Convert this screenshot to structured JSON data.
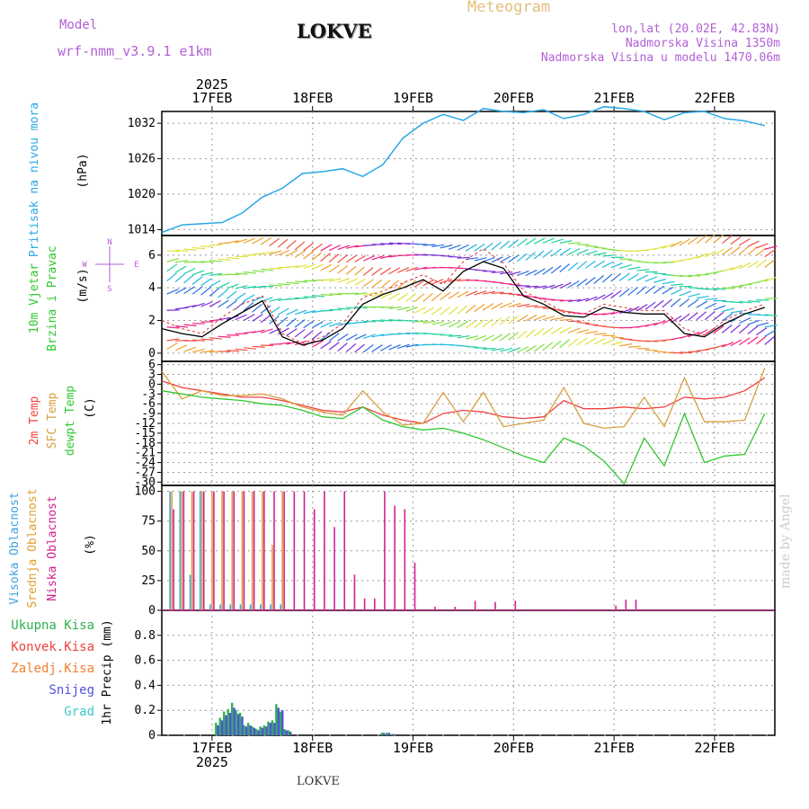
{
  "header": {
    "model_label": "Model",
    "model_name": "wrf-nmm_v3.9.1 e1km",
    "station": "LOKVE",
    "title": "Meteogram",
    "lonlat": "lon,lat (20.02E, 42.83N)",
    "elevation": "Nadmorska Visina 1350m",
    "model_elevation": "Nadmorska Visina u modelu 1470.06m"
  },
  "footer_station": "LOKVE",
  "watermark": "made by Angel",
  "colors": {
    "pressure": "#2aa8e6",
    "wind_speed": "#000000",
    "temp2m": "#f04040",
    "sfc_temp": "#d8a040",
    "dewpt": "#30c830",
    "high_cloud": "#40a0e0",
    "mid_cloud": "#e0a030",
    "low_cloud": "#d02090",
    "total_precip": "#30b050",
    "conv_precip": "#f04040",
    "frz_precip": "#f08030",
    "snow": "#5050e0",
    "hail": "#40c8c8",
    "title_purple": "#b25fd6"
  },
  "chart_data": [
    {
      "type": "line",
      "title": "",
      "ylabel_lines": [
        "Pritisak na nivou mora"
      ],
      "unit": "(hPa)",
      "x_date_labels": [
        "17FEB",
        "18FEB",
        "19FEB",
        "20FEB",
        "21FEB",
        "22FEB"
      ],
      "year_label": "2025",
      "x_range_days": [
        16.5,
        22.6
      ],
      "ylim": [
        1013,
        1034
      ],
      "yticks": [
        1014,
        1020,
        1026,
        1032
      ],
      "grid": true,
      "x": [
        16.5,
        16.7,
        16.9,
        17.1,
        17.3,
        17.5,
        17.7,
        17.9,
        18.1,
        18.3,
        18.5,
        18.7,
        18.9,
        19.1,
        19.3,
        19.5,
        19.7,
        19.9,
        20.1,
        20.3,
        20.5,
        20.7,
        20.9,
        21.1,
        21.3,
        21.5,
        21.7,
        21.9,
        22.1,
        22.3,
        22.5
      ],
      "series": [
        {
          "key": "pressure",
          "values": [
            1013.5,
            1014.8,
            1015.0,
            1015.2,
            1016.8,
            1019.5,
            1021.0,
            1023.5,
            1023.8,
            1024.3,
            1023.0,
            1025.0,
            1029.5,
            1032.0,
            1033.5,
            1032.5,
            1034.5,
            1034.0,
            1033.8,
            1034.3,
            1032.8,
            1033.5,
            1034.8,
            1034.5,
            1034.0,
            1032.6,
            1033.8,
            1034.0,
            1032.8,
            1032.4,
            1031.6
          ]
        }
      ]
    },
    {
      "type": "line",
      "title": "",
      "ylabel_lines": [
        "10m Vjetar",
        "Brzina i Pravac"
      ],
      "unit": "(m/s)",
      "compass": [
        "N",
        "W",
        "E",
        "S"
      ],
      "ylim": [
        -0.5,
        7.2
      ],
      "yticks": [
        0,
        2,
        4,
        6
      ],
      "grid": true,
      "x": [
        16.5,
        16.7,
        16.9,
        17.1,
        17.3,
        17.5,
        17.7,
        17.9,
        18.1,
        18.3,
        18.5,
        18.7,
        18.9,
        19.1,
        19.3,
        19.5,
        19.7,
        19.9,
        20.1,
        20.3,
        20.5,
        20.7,
        20.9,
        21.1,
        21.3,
        21.5,
        21.7,
        21.9,
        22.1,
        22.3,
        22.5
      ],
      "series": [
        {
          "key": "wind_speed",
          "values": [
            1.5,
            1.2,
            1.0,
            1.8,
            2.5,
            3.2,
            1.0,
            0.5,
            0.8,
            1.5,
            3.0,
            3.6,
            4.0,
            4.5,
            3.8,
            5.0,
            5.6,
            5.2,
            3.5,
            3.0,
            2.3,
            2.2,
            2.8,
            2.5,
            2.4,
            2.4,
            1.2,
            1.0,
            1.8,
            2.4,
            2.8
          ]
        },
        {
          "key": "wind_gust",
          "values": [
            2.0,
            1.5,
            1.2,
            2.2,
            3.0,
            3.5,
            1.2,
            0.6,
            1.0,
            1.8,
            3.4,
            3.8,
            4.3,
            4.8,
            4.2,
            5.6,
            6.4,
            5.5,
            3.8,
            3.2,
            2.5,
            2.4,
            3.0,
            2.8,
            2.6,
            2.6,
            1.5,
            1.1,
            2.0,
            2.6,
            3.0
          ]
        }
      ]
    },
    {
      "type": "line",
      "title": "",
      "ylabel_lines": [
        "2m Temp",
        "SFC Temp",
        "dewpt Temp"
      ],
      "unit": "(C)",
      "ylim": [
        -31,
        7
      ],
      "yticks": [
        6,
        3,
        0,
        -3,
        -6,
        -9,
        -12,
        -15,
        -18,
        -21,
        -24,
        -27,
        -30
      ],
      "grid": true,
      "x": [
        16.5,
        16.7,
        16.9,
        17.1,
        17.3,
        17.5,
        17.7,
        17.9,
        18.1,
        18.3,
        18.5,
        18.7,
        18.9,
        19.1,
        19.3,
        19.5,
        19.7,
        19.9,
        20.1,
        20.3,
        20.5,
        20.7,
        20.9,
        21.1,
        21.3,
        21.5,
        21.7,
        21.9,
        22.1,
        22.3,
        22.5
      ],
      "series": [
        {
          "key": "temp2m",
          "values": [
            1.0,
            -1.0,
            -2.0,
            -3.0,
            -4.0,
            -4.0,
            -5.0,
            -6.5,
            -8.0,
            -8.5,
            -7.0,
            -9.5,
            -11.0,
            -12.0,
            -9.0,
            -8.0,
            -8.5,
            -10.0,
            -10.5,
            -10.0,
            -5.0,
            -7.5,
            -7.5,
            -7.0,
            -7.5,
            -7.0,
            -4.0,
            -4.5,
            -4.0,
            -2.0,
            2.0
          ]
        },
        {
          "key": "sfc_temp",
          "values": [
            4.0,
            -4.5,
            -2.0,
            -3.5,
            -3.5,
            -3.0,
            -4.5,
            -7.0,
            -8.5,
            -9.5,
            -2.0,
            -8.5,
            -12.5,
            -12.0,
            -2.5,
            -11.5,
            -2.5,
            -13.0,
            -12.0,
            -11.0,
            -1.0,
            -12.0,
            -13.5,
            -13.0,
            -4.0,
            -13.0,
            2.0,
            -11.5,
            -11.5,
            -11.0,
            5.0
          ]
        },
        {
          "key": "dewpt",
          "values": [
            -2.0,
            -3.0,
            -4.0,
            -4.5,
            -5.0,
            -6.0,
            -6.5,
            -8.0,
            -10.0,
            -10.5,
            -7.0,
            -11.0,
            -13.0,
            -14.0,
            -13.5,
            -15.0,
            -17.0,
            -19.5,
            -22.0,
            -24.0,
            -16.5,
            -19.0,
            -23.5,
            -30.5,
            -16.5,
            -25.0,
            -9.0,
            -24.0,
            -22.0,
            -21.5,
            -9.0
          ]
        }
      ]
    },
    {
      "type": "bar",
      "title": "",
      "ylabel_lines": [
        "Visoka Oblacnost",
        "Srednja Oblacnost",
        "Niska Oblacnost"
      ],
      "unit": "(%)",
      "ylim": [
        0,
        105
      ],
      "yticks": [
        0,
        25,
        50,
        75,
        100
      ],
      "grid": true,
      "x": [
        16.6,
        16.7,
        16.8,
        16.9,
        17.0,
        17.1,
        17.2,
        17.3,
        17.4,
        17.5,
        17.6,
        17.7,
        17.8,
        17.9,
        18.0,
        18.1,
        18.2,
        18.3,
        18.4,
        18.5,
        18.6,
        18.7,
        18.8,
        18.9,
        19.0,
        19.2,
        19.4,
        19.6,
        19.8,
        20.0,
        20.5,
        21.0,
        21.1,
        21.2
      ],
      "series": [
        {
          "key": "high_cloud",
          "values": [
            100,
            100,
            30,
            100,
            5,
            5,
            5,
            5,
            5,
            5,
            5,
            5,
            0,
            0,
            0,
            0,
            0,
            0,
            0,
            0,
            0,
            0,
            0,
            0,
            0,
            0,
            0,
            0,
            0,
            0,
            0,
            0,
            0,
            0
          ]
        },
        {
          "key": "mid_cloud",
          "values": [
            100,
            100,
            100,
            100,
            100,
            100,
            100,
            100,
            100,
            100,
            55,
            100,
            0,
            0,
            0,
            0,
            0,
            0,
            0,
            0,
            0,
            0,
            0,
            0,
            0,
            0,
            0,
            0,
            0,
            0,
            0,
            0,
            0,
            0
          ]
        },
        {
          "key": "low_cloud",
          "values": [
            85,
            100,
            100,
            100,
            100,
            100,
            100,
            100,
            100,
            100,
            100,
            100,
            100,
            100,
            85,
            100,
            70,
            100,
            30,
            10,
            10,
            100,
            88,
            85,
            40,
            3,
            3,
            8,
            7,
            8,
            1,
            4,
            9,
            9
          ]
        }
      ]
    },
    {
      "type": "bar",
      "title": "",
      "legend": [
        "Ukupna Kisa",
        "Konvek.Kisa",
        "Zaledj.Kisa",
        "Snijeg",
        "Grad"
      ],
      "ylabel_lines": [
        "1hr Precip (mm)"
      ],
      "ylim": [
        0,
        1.0
      ],
      "yticks": [
        0,
        0.2,
        0.4,
        0.6,
        0.8
      ],
      "grid": true,
      "x": [
        17.05,
        17.09,
        17.13,
        17.17,
        17.21,
        17.25,
        17.29,
        17.33,
        17.37,
        17.41,
        17.45,
        17.49,
        17.53,
        17.57,
        17.61,
        17.65,
        17.69,
        17.73,
        17.77,
        18.7,
        18.75,
        18.8
      ],
      "series": [
        {
          "key": "total_precip",
          "values": [
            0.1,
            0.14,
            0.19,
            0.21,
            0.26,
            0.2,
            0.18,
            0.08,
            0.1,
            0.07,
            0.05,
            0.07,
            0.08,
            0.11,
            0.12,
            0.25,
            0.19,
            0.05,
            0.04,
            0.02,
            0.02,
            0.01
          ]
        },
        {
          "key": "snow",
          "values": [
            0.08,
            0.12,
            0.16,
            0.18,
            0.22,
            0.17,
            0.15,
            0.07,
            0.08,
            0.06,
            0.04,
            0.06,
            0.07,
            0.1,
            0.1,
            0.22,
            0.2,
            0.04,
            0.03,
            0.02,
            0.02,
            0.01
          ]
        }
      ]
    }
  ]
}
